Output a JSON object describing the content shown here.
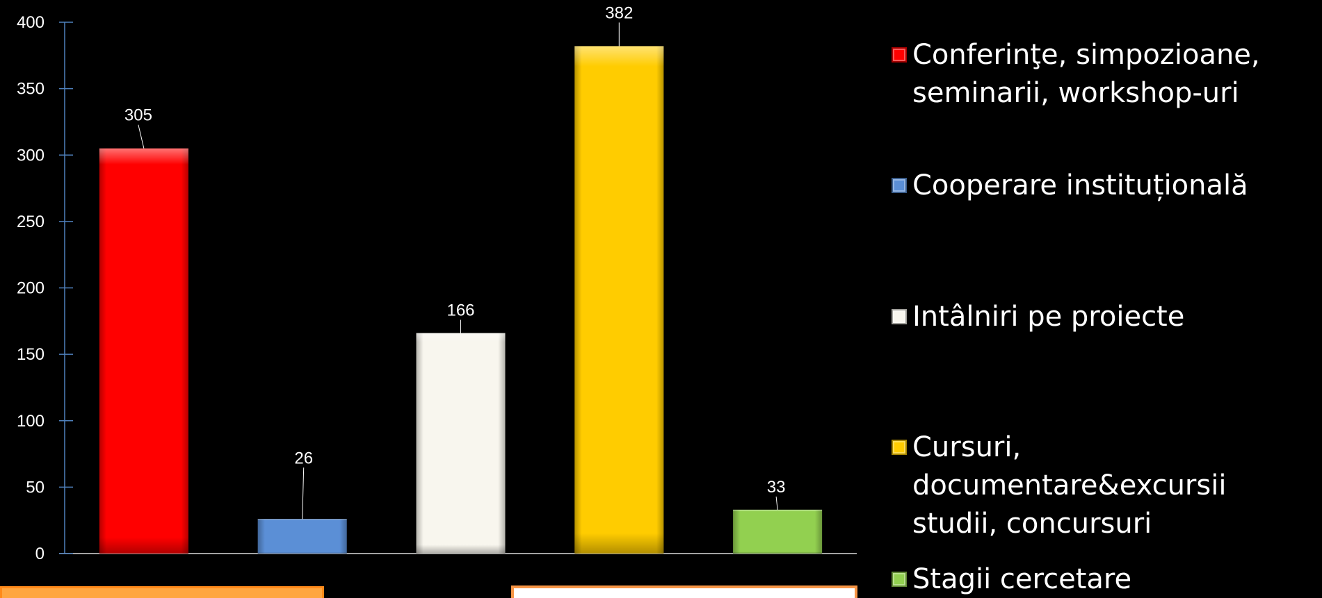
{
  "chart_data": {
    "type": "bar",
    "title": "",
    "xlabel": "",
    "ylabel": "",
    "ylim": [
      0,
      400
    ],
    "yticks": [
      0,
      50,
      100,
      150,
      200,
      250,
      300,
      350,
      400
    ],
    "grid": false,
    "legend_position": "right",
    "categories": [
      "Conferinţe, simpozioane, seminarii, workshop-uri",
      "Cooperare instituțională",
      "Intâlniri pe proiecte",
      "Cursuri, documentare&excursii studii, concursuri",
      "Stagii cercetare"
    ],
    "values": [
      305,
      26,
      166,
      382,
      33
    ],
    "colors": [
      "#ff0000",
      "#5b8fd6",
      "#f8f6ee",
      "#ffcc00",
      "#92d050"
    ]
  },
  "legend": {
    "items": [
      {
        "label": "Conferinţe, simpozioane, seminarii, workshop-uri",
        "color": "#ff0000"
      },
      {
        "label": "Cooperare instituțională",
        "color": "#5b8fd6"
      },
      {
        "label": "Intâlniri pe proiecte",
        "color": "#f8f6ee"
      },
      {
        "label": "Cursuri, documentare&excursii studii, concursuri",
        "color": "#ffcc00"
      },
      {
        "label": "Stagii cercetare",
        "color": "#92d050"
      }
    ]
  },
  "bottom_boxes": [
    {
      "fill": "#ffa640",
      "border": "#ff8a1a"
    },
    {
      "fill": "#ffffff",
      "border": "#f79646"
    }
  ]
}
